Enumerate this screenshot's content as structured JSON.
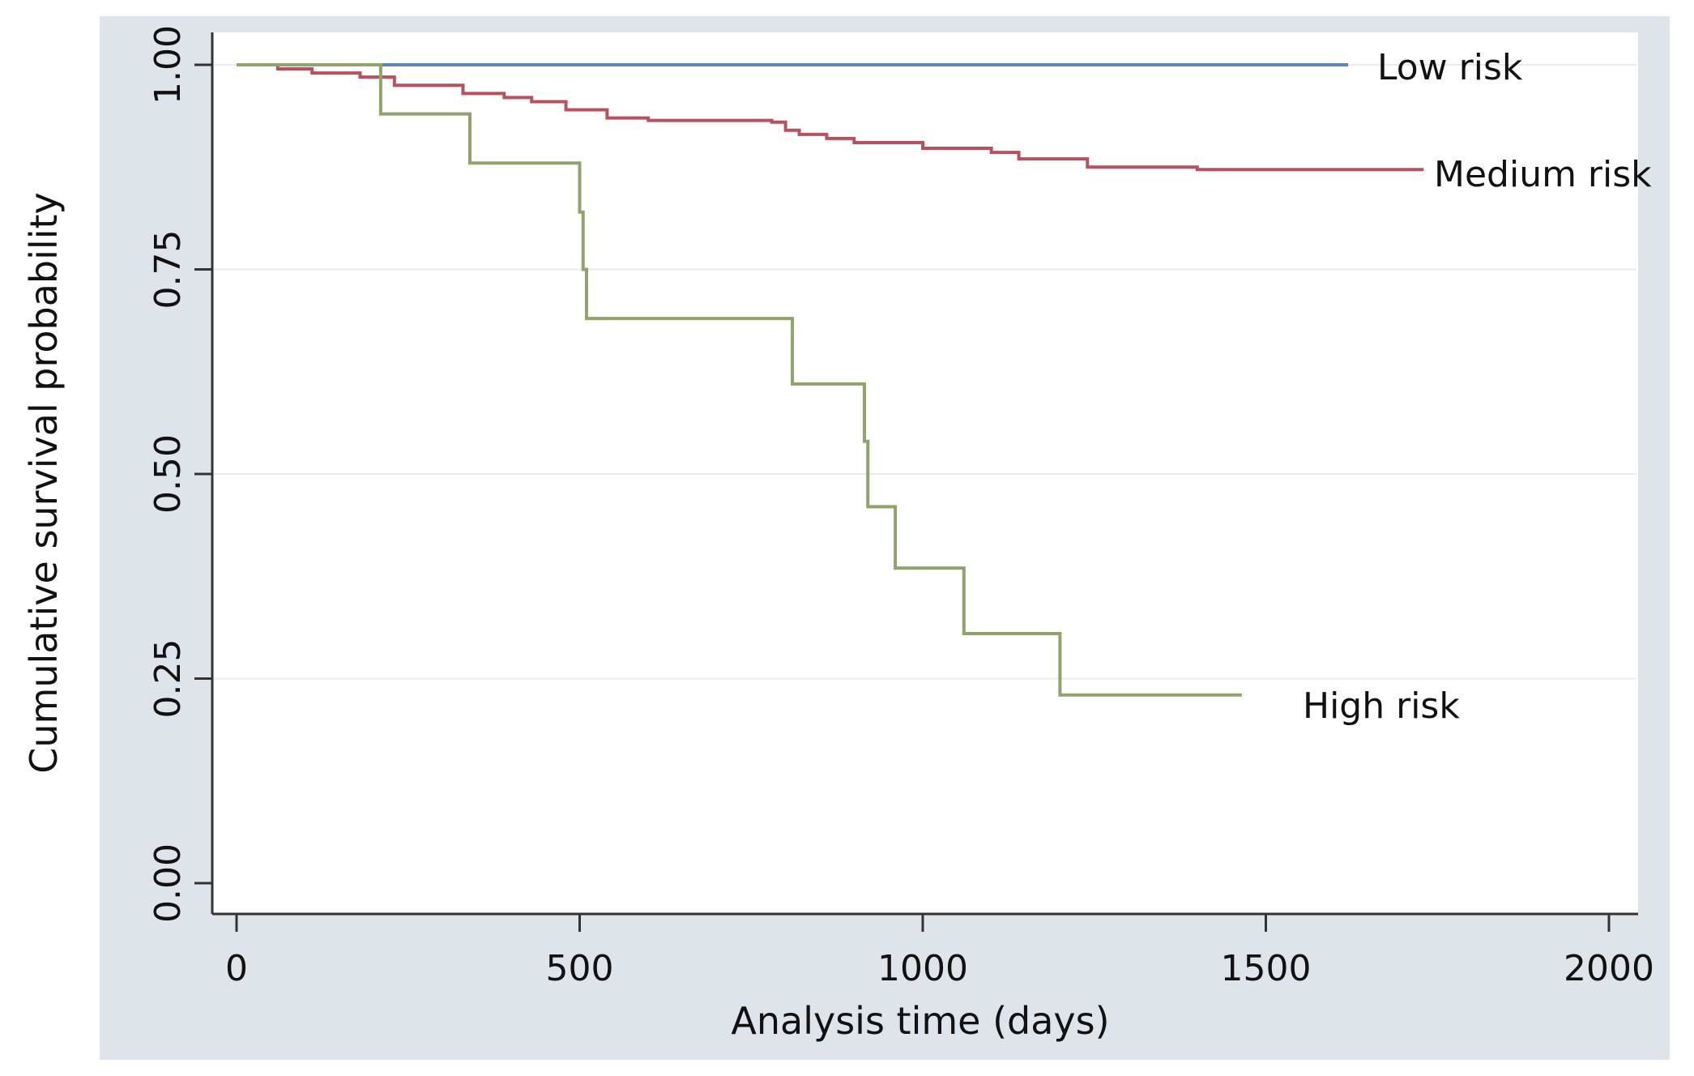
{
  "chart_data": {
    "type": "line",
    "subtype": "kaplan-meier step",
    "title": "",
    "xlabel": "Analysis time (days)",
    "ylabel": "Cumulative survival probability",
    "xlim": [
      0,
      2000
    ],
    "ylim": [
      0,
      1
    ],
    "xticks": [
      0,
      500,
      1000,
      1500,
      2000
    ],
    "xtick_labels": [
      "0",
      "500",
      "1000",
      "1500",
      "2000"
    ],
    "yticks": [
      0,
      0.25,
      0.5,
      0.75,
      1.0
    ],
    "ytick_labels": [
      "0.00",
      "0.25",
      "0.50",
      "0.75",
      "1.00"
    ],
    "grid": "horizontal",
    "colors": {
      "background": "#dde4ea",
      "plot_area": "#ffffff",
      "grid": "#e7ebef",
      "axis": "#333333"
    },
    "series": [
      {
        "name": "Low risk",
        "label": "Low risk",
        "color": "#5b86b3",
        "x": [
          0,
          1620
        ],
        "y": [
          1.0,
          1.0
        ]
      },
      {
        "name": "Medium risk",
        "label": "Medium risk",
        "color": "#b8515e",
        "x": [
          0,
          60,
          110,
          180,
          230,
          330,
          390,
          430,
          480,
          540,
          600,
          780,
          800,
          820,
          860,
          900,
          1000,
          1100,
          1140,
          1240,
          1400,
          1730
        ],
        "y": [
          1.0,
          0.995,
          0.99,
          0.985,
          0.975,
          0.965,
          0.96,
          0.955,
          0.945,
          0.935,
          0.932,
          0.93,
          0.92,
          0.915,
          0.91,
          0.905,
          0.898,
          0.893,
          0.885,
          0.875,
          0.872,
          0.872
        ]
      },
      {
        "name": "High risk",
        "label": "High risk",
        "color": "#8fa36a",
        "x": [
          0,
          210,
          340,
          500,
          505,
          510,
          520,
          810,
          915,
          920,
          960,
          1060,
          1200,
          1465
        ],
        "y": [
          1.0,
          0.94,
          0.88,
          0.82,
          0.75,
          0.69,
          0.69,
          0.61,
          0.54,
          0.46,
          0.385,
          0.305,
          0.23,
          0.23
        ]
      }
    ]
  }
}
